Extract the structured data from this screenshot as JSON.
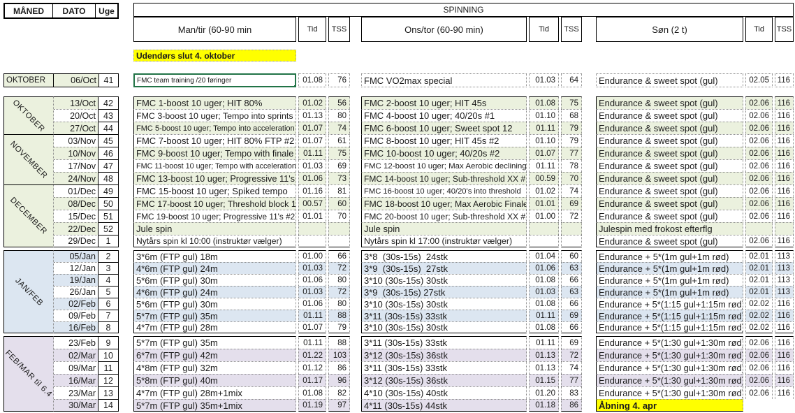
{
  "corner": {
    "maaned": "MÅNED",
    "dato": "DATO",
    "uge": "Uge"
  },
  "title": "SPINNING",
  "columns": [
    {
      "label": "Man/tir (60-90 min",
      "tid_label": "Tid",
      "tss_label": "TSS"
    },
    {
      "label": "Ons/tor (60-90 min)",
      "tid_label": "Tid",
      "tss_label": "TSS"
    },
    {
      "label": "Søn (2 t)",
      "tid_label": "Tid",
      "tss_label": "TSS"
    }
  ],
  "note_outdoor": "Udendørs slut 4. oktober",
  "colors": {
    "shade_green": "#ebf1de",
    "shade_blue": "#dce6f1",
    "shade_purple": "#e4dfec",
    "highlight_yellow": "#ffff00",
    "selection_green": "#217346"
  },
  "intro_row": {
    "month": "OKTOBER",
    "date": "06/Oct",
    "week": "41",
    "cells": [
      {
        "text": "FMC team training /20 føringer",
        "tid": "01.08",
        "tss": "76",
        "selected": true
      },
      {
        "text": "FMC VO2max special",
        "tid": "01.03",
        "tss": "64"
      },
      {
        "text": "Endurance & sweet spot (gul)",
        "tid": "02.05",
        "tss": "116"
      }
    ]
  },
  "blocks": [
    {
      "theme": "green",
      "groups": [
        {
          "month": "OKTOBER",
          "rows": [
            {
              "date": "13/Oct",
              "week": "42",
              "shaded": true,
              "date_shaded": true,
              "cells": [
                {
                  "text": "FMC 1-boost 10 uger; HIT 80%",
                  "tid": "01.02",
                  "tss": "56"
                },
                {
                  "text": "FMC 2-boost 10 uger; HIT 45s",
                  "tid": "01.08",
                  "tss": "75"
                },
                {
                  "text": "Endurance & sweet spot (gul)",
                  "tid": "02.06",
                  "tss": "116"
                }
              ]
            },
            {
              "date": "20/Oct",
              "week": "43",
              "shaded": false,
              "date_shaded": false,
              "cells": [
                {
                  "text": "FMC 3-boost 10 uger; Tempo into sprints",
                  "tid": "01.13",
                  "tss": "80"
                },
                {
                  "text": "FMC 4-boost 10 uger; 40/20s #1",
                  "tid": "01.10",
                  "tss": "68"
                },
                {
                  "text": "Endurance & sweet spot (gul)",
                  "tid": "02.06",
                  "tss": "116"
                }
              ]
            },
            {
              "date": "27/Oct",
              "week": "44",
              "shaded": true,
              "date_shaded": true,
              "cells": [
                {
                  "text": "FMC 5-boost 10 uger; Tempo into acceleration",
                  "tid": "01.07",
                  "tss": "74"
                },
                {
                  "text": "FMC 6-boost 10 uger; Sweet spot 12",
                  "tid": "01.11",
                  "tss": "79"
                },
                {
                  "text": "Endurance & sweet spot (gul)",
                  "tid": "02.06",
                  "tss": "116"
                }
              ]
            }
          ]
        },
        {
          "month": "NOVEMBER",
          "rows": [
            {
              "date": "03/Nov",
              "week": "45",
              "shaded": false,
              "date_shaded": false,
              "cells": [
                {
                  "text": "FMC 7-boost 10 uger; HIT 80% FTP #2",
                  "tid": "01.07",
                  "tss": "61"
                },
                {
                  "text": "FMC 8-boost 10 uger; HIT 45s #2",
                  "tid": "01.10",
                  "tss": "79"
                },
                {
                  "text": "Endurance & sweet spot (gul)",
                  "tid": "02.06",
                  "tss": "116"
                }
              ]
            },
            {
              "date": "10/Nov",
              "week": "46",
              "shaded": true,
              "date_shaded": true,
              "cells": [
                {
                  "text": "FMC 9-boost 10 uger; Tempo with finale",
                  "tid": "01.11",
                  "tss": "75"
                },
                {
                  "text": "FMC 10-boost 10 uger; 40/20s #2",
                  "tid": "01.07",
                  "tss": "77"
                },
                {
                  "text": "Endurance & sweet spot (gul)",
                  "tid": "02.06",
                  "tss": "116"
                }
              ]
            },
            {
              "date": "17/Nov",
              "week": "47",
              "shaded": false,
              "date_shaded": false,
              "cells": [
                {
                  "text": "FMC 11-boost 10 uger; Tempo with acceleration",
                  "tid": "01.03",
                  "tss": "69"
                },
                {
                  "text": "FMC 12-boost 10 uger; Max Aerobic declining",
                  "tid": "01.11",
                  "tss": "78"
                },
                {
                  "text": "Endurance & sweet spot (gul)",
                  "tid": "02.06",
                  "tss": "116"
                }
              ]
            },
            {
              "date": "24/Nov",
              "week": "48",
              "shaded": true,
              "date_shaded": true,
              "cells": [
                {
                  "text": "FMC 13-boost 10 uger; Progressive 11's",
                  "tid": "01.06",
                  "tss": "73"
                },
                {
                  "text": "FMC 14-boost 10 uger; Sub-threshold XX #1",
                  "tid": "00.59",
                  "tss": "70"
                },
                {
                  "text": "Endurance & sweet spot (gul)",
                  "tid": "02.06",
                  "tss": "116"
                }
              ]
            }
          ]
        },
        {
          "month": "DECEMBER",
          "rows": [
            {
              "date": "01/Dec",
              "week": "49",
              "shaded": false,
              "date_shaded": false,
              "cells": [
                {
                  "text": "FMC 15-boost 10 uger; Spiked tempo",
                  "tid": "01.16",
                  "tss": "81"
                },
                {
                  "text": "FMC 16-boost 10 uger; 40/20's into threshold",
                  "tid": "01.02",
                  "tss": "74"
                },
                {
                  "text": "Endurance & sweet spot (gul)",
                  "tid": "02.06",
                  "tss": "116"
                }
              ]
            },
            {
              "date": "08/Dec",
              "week": "50",
              "shaded": true,
              "date_shaded": true,
              "cells": [
                {
                  "text": "FMC 17-boost 10 uger; Threshold block 1",
                  "tid": "00.57",
                  "tss": "60"
                },
                {
                  "text": "FMC 18-boost 10 uger; Max Aerobic Finale",
                  "tid": "01.01",
                  "tss": "69"
                },
                {
                  "text": "Endurance & sweet spot (gul)",
                  "tid": "02.06",
                  "tss": "116"
                }
              ]
            },
            {
              "date": "15/Dec",
              "week": "51",
              "shaded": false,
              "date_shaded": false,
              "cells": [
                {
                  "text": "FMC 19-boost 10 uger; Progressive 11's #2",
                  "tid": "01.01",
                  "tss": "70"
                },
                {
                  "text": "FMC 20-boost 10 uger; Sub-threshold XX #2",
                  "tid": "01.00",
                  "tss": "72"
                },
                {
                  "text": "Endurance & sweet spot (gul)",
                  "tid": "02.06",
                  "tss": "116"
                }
              ]
            },
            {
              "date": "22/Dec",
              "week": "52",
              "shaded": true,
              "date_shaded": true,
              "cells": [
                {
                  "text": "Jule spin",
                  "tid": "",
                  "tss": ""
                },
                {
                  "text": "Jule spin",
                  "tid": "",
                  "tss": ""
                },
                {
                  "text": "Julespin med frokost efterflg",
                  "tid": "",
                  "tss": ""
                }
              ]
            },
            {
              "date": "29/Dec",
              "week": "1",
              "shaded": false,
              "date_shaded": false,
              "cells": [
                {
                  "text": "Nytårs spin kl 10:00 (instruktør vælger)",
                  "tid": "",
                  "tss": ""
                },
                {
                  "text": "Nytårs spin kl 17:00 (instruktør vælger)",
                  "tid": "",
                  "tss": ""
                },
                {
                  "text": "Endurance & sweet spot (gul)",
                  "tid": "02.06",
                  "tss": "116"
                }
              ]
            }
          ]
        }
      ]
    },
    {
      "theme": "blue",
      "groups": [
        {
          "month": "JAN/FEB",
          "rows": [
            {
              "date": "05/Jan",
              "week": "2",
              "shaded": false,
              "date_shaded": true,
              "cells": [
                {
                  "text": "3*6m (FTP gul) 18m",
                  "tid": "01.00",
                  "tss": "66"
                },
                {
                  "text": "3*8  (30s-15s)  24stk",
                  "tid": "01.04",
                  "tss": "60"
                },
                {
                  "text": "Endurance + 5*(1m gul+1m rød)",
                  "tid": "02.01",
                  "tss": "113"
                }
              ]
            },
            {
              "date": "12/Jan",
              "week": "3",
              "shaded": true,
              "date_shaded": false,
              "cells": [
                {
                  "text": "4*6m (FTP gul) 24m",
                  "tid": "01.03",
                  "tss": "72"
                },
                {
                  "text": "3*9  (30s-15s)  27stk",
                  "tid": "01.06",
                  "tss": "63"
                },
                {
                  "text": "Endurance + 5*(1m gul+1m rød)",
                  "tid": "02.01",
                  "tss": "113"
                }
              ]
            },
            {
              "date": "19/Jan",
              "week": "4",
              "shaded": false,
              "date_shaded": true,
              "cells": [
                {
                  "text": "5*6m (FTP gul) 30m",
                  "tid": "01.06",
                  "tss": "80"
                },
                {
                  "text": "3*10 (30s-15s) 30stk",
                  "tid": "01.08",
                  "tss": "66"
                },
                {
                  "text": "Endurance + 5*(1m gul+1m rød)",
                  "tid": "02.01",
                  "tss": "113"
                }
              ]
            },
            {
              "date": "26/Jan",
              "week": "5",
              "shaded": true,
              "date_shaded": false,
              "cells": [
                {
                  "text": "4*6m (FTP gul) 24m",
                  "tid": "01.03",
                  "tss": "72"
                },
                {
                  "text": "3*9  (30s-15s) 27stk",
                  "tid": "01.03",
                  "tss": "63"
                },
                {
                  "text": "Endurance + 5*(1m gul+1m rød)",
                  "tid": "02.01",
                  "tss": "113"
                }
              ]
            },
            {
              "date": "02/Feb",
              "week": "6",
              "shaded": false,
              "date_shaded": true,
              "cells": [
                {
                  "text": "5*6m (FTP gul) 30m",
                  "tid": "01.06",
                  "tss": "80"
                },
                {
                  "text": "3*10 (30s-15s) 30stk",
                  "tid": "01.08",
                  "tss": "66"
                },
                {
                  "text": "Endurance + 5*(1:15 gul+1:15m rød)",
                  "tid": "02.02",
                  "tss": "116"
                }
              ]
            },
            {
              "date": "09/Feb",
              "week": "7",
              "shaded": true,
              "date_shaded": false,
              "cells": [
                {
                  "text": "5*7m (FTP gul) 35m",
                  "tid": "01.11",
                  "tss": "88"
                },
                {
                  "text": "3*11 (30s-15s) 33stk",
                  "tid": "01.11",
                  "tss": "69"
                },
                {
                  "text": "Endurance + 5*(1:15 gul+1:15m rød)",
                  "tid": "02.02",
                  "tss": "116"
                }
              ]
            },
            {
              "date": "16/Feb",
              "week": "8",
              "shaded": false,
              "date_shaded": true,
              "cells": [
                {
                  "text": "4*7m (FTP gul) 28m",
                  "tid": "01.07",
                  "tss": "79"
                },
                {
                  "text": "3*10 (30s-15s) 30stk",
                  "tid": "01.08",
                  "tss": "66"
                },
                {
                  "text": "Endurance + 5*(1:15 gul+1:15m rød)",
                  "tid": "02.02",
                  "tss": "116"
                }
              ]
            }
          ]
        }
      ]
    },
    {
      "theme": "purple",
      "groups": [
        {
          "month": "FEB/MAR til 6.4",
          "rows": [
            {
              "date": "23/Feb",
              "week": "9",
              "shaded": false,
              "date_shaded": false,
              "cells": [
                {
                  "text": "5*7m (FTP gul) 35m",
                  "tid": "01.11",
                  "tss": "88"
                },
                {
                  "text": "3*11 (30s-15s) 33stk",
                  "tid": "01.11",
                  "tss": "69"
                },
                {
                  "text": "Endurance + 5*(1:30 gul+1:30m rød)",
                  "tid": "02.06",
                  "tss": "116"
                }
              ]
            },
            {
              "date": "02/Mar",
              "week": "10",
              "shaded": true,
              "date_shaded": true,
              "cells": [
                {
                  "text": "6*7m (FTP gul) 42m",
                  "tid": "01.22",
                  "tss": "103"
                },
                {
                  "text": "3*12 (30s-15s) 36stk",
                  "tid": "01.13",
                  "tss": "72"
                },
                {
                  "text": "Endurance + 5*(1:30 gul+1:30m rød)",
                  "tid": "02.06",
                  "tss": "116"
                }
              ]
            },
            {
              "date": "09/Mar",
              "week": "11",
              "shaded": false,
              "date_shaded": false,
              "cells": [
                {
                  "text": "4*8m (FTP gul) 32m",
                  "tid": "01.12",
                  "tss": "86"
                },
                {
                  "text": "3*11 (30s-15s) 33stk",
                  "tid": "01.13",
                  "tss": "74"
                },
                {
                  "text": "Endurance + 5*(1:30 gul+1:30m rød)",
                  "tid": "02.06",
                  "tss": "116"
                }
              ]
            },
            {
              "date": "16/Mar",
              "week": "12",
              "shaded": true,
              "date_shaded": true,
              "cells": [
                {
                  "text": "5*8m (FTP gul) 40m",
                  "tid": "01.17",
                  "tss": "96"
                },
                {
                  "text": "3*12 (30s-15s) 36stk",
                  "tid": "01.15",
                  "tss": "77"
                },
                {
                  "text": "Endurance + 5*(1:30 gul+1:30m rød)",
                  "tid": "02.06",
                  "tss": "116"
                }
              ]
            },
            {
              "date": "23/Mar",
              "week": "13",
              "shaded": false,
              "date_shaded": false,
              "cells": [
                {
                  "text": "4*7m (FTP gul) 28m+1mix",
                  "tid": "01.08",
                  "tss": "82"
                },
                {
                  "text": "4*10 (30s-15s) 40stk",
                  "tid": "01.20",
                  "tss": "83"
                },
                {
                  "text": "Endurance + 5*(1:30 gul+1:30m rød)",
                  "tid": "02.06",
                  "tss": "116"
                }
              ]
            },
            {
              "date": "30/Mar",
              "week": "14",
              "shaded": true,
              "date_shaded": true,
              "cells": [
                {
                  "text": "5*7m (FTP gul) 35m+1mix",
                  "tid": "01.19",
                  "tss": "97"
                },
                {
                  "text": "4*11 (30s-15s) 44stk",
                  "tid": "01.18",
                  "tss": "86"
                },
                {
                  "text": "Åbning 4. apr",
                  "tid": "",
                  "tss": "",
                  "highlight": true,
                  "no_box": true
                }
              ]
            }
          ]
        }
      ]
    }
  ]
}
